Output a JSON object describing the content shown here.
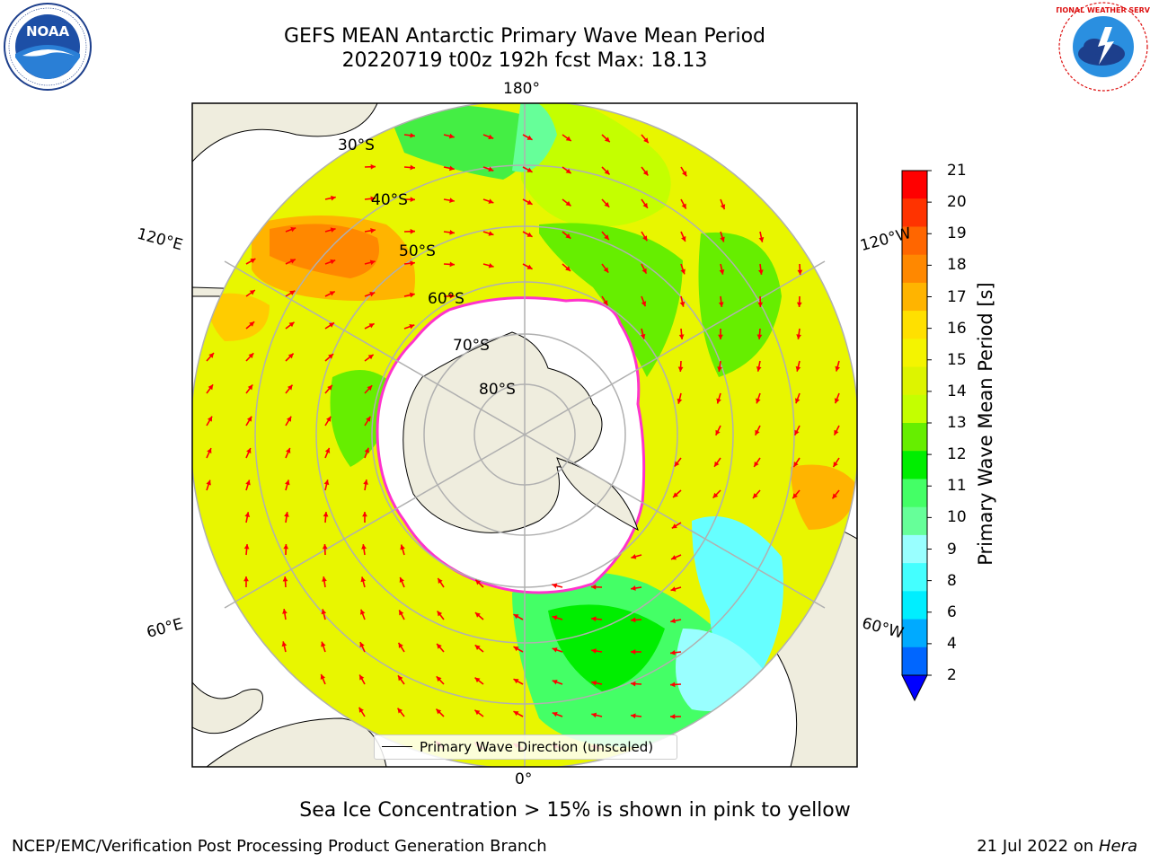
{
  "header": {
    "title_line1": "GEFS MEAN Antarctic Primary Wave Mean Period",
    "title_line2": "20220719 t00z 192h fcst   Max: 18.13"
  },
  "logos": {
    "left": "NOAA",
    "left_ring_text": "NATIONAL OCEANIC AND ATMOSPHERIC ADMINISTRATION · U.S. DEPARTMENT OF COMMERCE",
    "right_ring_text": "NATIONAL WEATHER SERVICE"
  },
  "map": {
    "meridian_labels": {
      "top": "180°",
      "bottom": "0°",
      "upper_left": "120°E",
      "upper_right": "120°W",
      "lower_left": "60°E",
      "lower_right": "60°W"
    },
    "latitude_labels": [
      "30°S",
      "40°S",
      "50°S",
      "60°S",
      "70°S",
      "80°S"
    ],
    "legend_label": "Primary Wave Direction (unscaled)",
    "colors": {
      "land": "#efedde",
      "ice": "#ffffff",
      "ice_edge": "#ff33cc",
      "arrow": "#ff0000",
      "grid": "#b0b0b0"
    }
  },
  "colorbar": {
    "title": "Primary Wave Mean Period [s]",
    "ticks": [
      "21",
      "20",
      "19",
      "18",
      "17",
      "16",
      "15",
      "14",
      "13",
      "12",
      "11",
      "10",
      "9",
      "8",
      "6",
      "4",
      "2"
    ],
    "colors": [
      "#ff0000",
      "#ff3300",
      "#ff6600",
      "#ff8800",
      "#ffb400",
      "#ffe000",
      "#f4f400",
      "#ddf400",
      "#c4ff00",
      "#66ee00",
      "#00ee00",
      "#44ff66",
      "#66ff99",
      "#99ffff",
      "#44ffff",
      "#00eeff",
      "#00aaff",
      "#0066ff"
    ],
    "extend_color": "#0000ff"
  },
  "caption": "Sea Ice Concentration > 15% is shown in pink to yellow",
  "footer": {
    "left": "NCEP/EMC/Verification Post Processing Product Generation Branch",
    "right_date": "21 Jul 2022 on ",
    "right_host": "Hera"
  }
}
